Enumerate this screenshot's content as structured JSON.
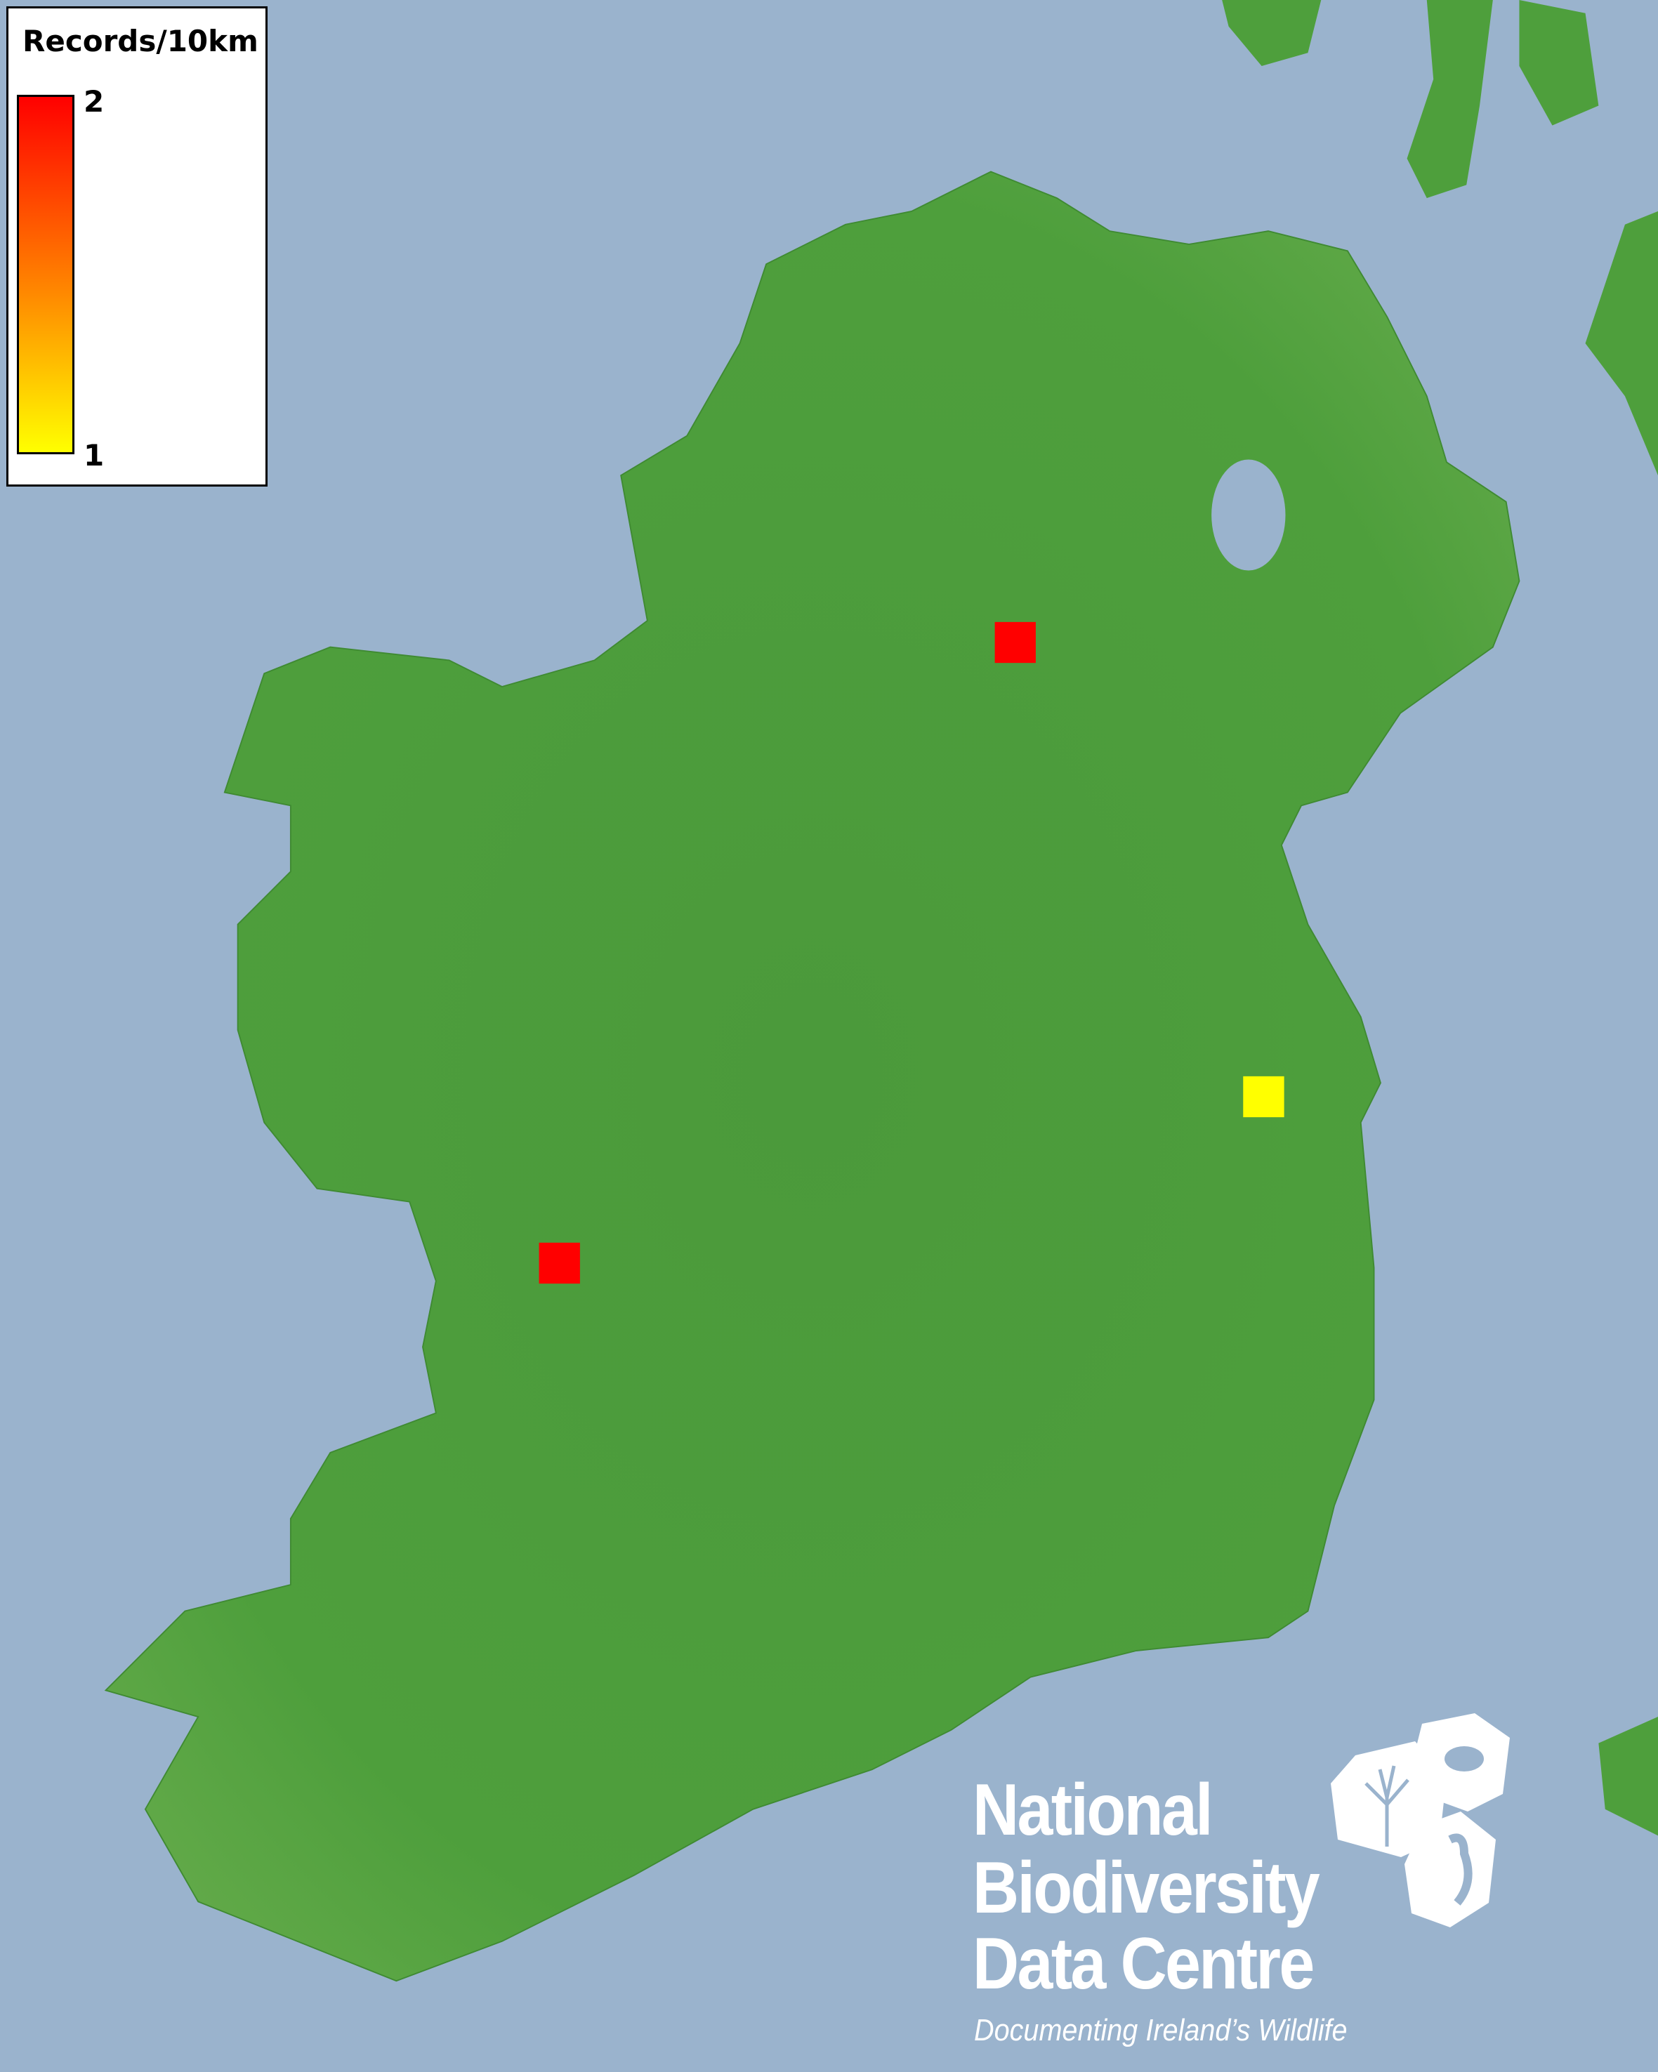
{
  "colors": {
    "sea": "#9ab3cd",
    "land": "#4a9e3a",
    "land_high": "#8fbf6a",
    "low": "#ffff00",
    "high": "#ff0000"
  },
  "legend": {
    "title": "Records/10km",
    "max_label": "2",
    "min_label": "1",
    "min": 1,
    "max": 2
  },
  "records": [
    {
      "value": 2,
      "color": "#ff0000"
    },
    {
      "value": 2,
      "color": "#ff0000"
    },
    {
      "value": 1,
      "color": "#ffff00"
    }
  ],
  "logo": {
    "line1": "National",
    "line2": "Biodiversity",
    "line3": "Data Centre",
    "tagline": "Documenting Ireland’s Wildlife"
  }
}
